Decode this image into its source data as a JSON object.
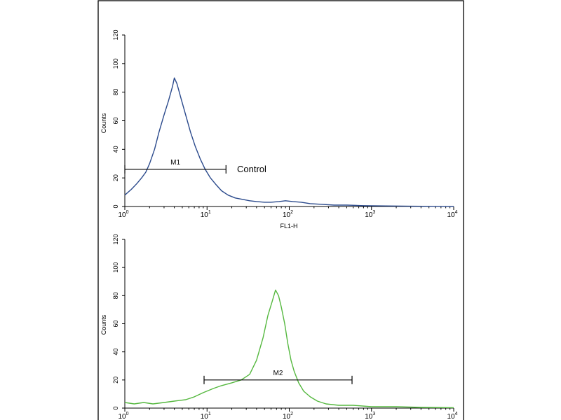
{
  "chart_data": [
    {
      "type": "line",
      "title": "",
      "xlabel": "FL1-H",
      "ylabel": "Counts",
      "x_scale": "log",
      "xlim": [
        1,
        10000
      ],
      "ylim": [
        0,
        120
      ],
      "x_ticks": [
        {
          "base": "10",
          "exp": "0"
        },
        {
          "base": "10",
          "exp": "1"
        },
        {
          "base": "10",
          "exp": "2"
        },
        {
          "base": "10",
          "exp": "3"
        },
        {
          "base": "10",
          "exp": "4"
        }
      ],
      "y_ticks": [
        "0",
        "20",
        "40",
        "60",
        "80",
        "100",
        "120"
      ],
      "grid": false,
      "series": [
        {
          "color": "#2b4a8c",
          "x": [
            1.0,
            1.2,
            1.4,
            1.6,
            1.8,
            2.0,
            2.3,
            2.6,
            3.0,
            3.4,
            3.8,
            4.0,
            4.3,
            4.8,
            5.5,
            6.3,
            7.2,
            8.3,
            9.5,
            11,
            13,
            15,
            18,
            22,
            27,
            33,
            40,
            50,
            60,
            75,
            90,
            110,
            140,
            180,
            250,
            350,
            500,
            800,
            1500,
            3000,
            10000
          ],
          "y": [
            8,
            12,
            16,
            20,
            24,
            30,
            40,
            52,
            64,
            74,
            84,
            90,
            86,
            76,
            64,
            52,
            42,
            33,
            26,
            20,
            15,
            11,
            8,
            6,
            5,
            4,
            3.5,
            3,
            3,
            3.5,
            4,
            3.5,
            3,
            2,
            1.5,
            1,
            1,
            0.6,
            0.4,
            0.2,
            0
          ]
        }
      ],
      "gates": [
        {
          "label": "M1",
          "x_range": [
            1,
            17
          ],
          "y": 26
        }
      ],
      "annotation": "Control"
    },
    {
      "type": "line",
      "title": "",
      "xlabel": "",
      "ylabel": "Counts",
      "x_scale": "log",
      "xlim": [
        1,
        10000
      ],
      "ylim": [
        0,
        120
      ],
      "x_ticks": [
        {
          "base": "10",
          "exp": "0"
        },
        {
          "base": "10",
          "exp": "1"
        },
        {
          "base": "10",
          "exp": "2"
        },
        {
          "base": "10",
          "exp": "3"
        },
        {
          "base": "10",
          "exp": "4"
        }
      ],
      "y_ticks": [
        "0",
        "20",
        "40",
        "60",
        "80",
        "100",
        "120"
      ],
      "grid": false,
      "series": [
        {
          "color": "#55b83f",
          "x": [
            1.0,
            1.3,
            1.7,
            2.2,
            3.0,
            4.0,
            5.5,
            7.0,
            9.0,
            12,
            15,
            20,
            26,
            33,
            40,
            48,
            55,
            62,
            68,
            74,
            80,
            88,
            96,
            105,
            115,
            130,
            150,
            180,
            220,
            280,
            400,
            600,
            1000,
            2000,
            4000,
            10000
          ],
          "y": [
            4,
            3,
            4,
            3,
            4,
            5,
            6,
            8,
            11,
            14,
            16,
            18,
            20,
            24,
            34,
            50,
            66,
            76,
            84,
            80,
            72,
            60,
            46,
            34,
            26,
            18,
            12,
            8,
            5,
            3,
            2,
            2,
            1,
            1,
            0.5,
            0.3
          ]
        }
      ],
      "gates": [
        {
          "label": "M2",
          "x_range": [
            9.2,
            580
          ],
          "y": 20
        }
      ]
    }
  ]
}
